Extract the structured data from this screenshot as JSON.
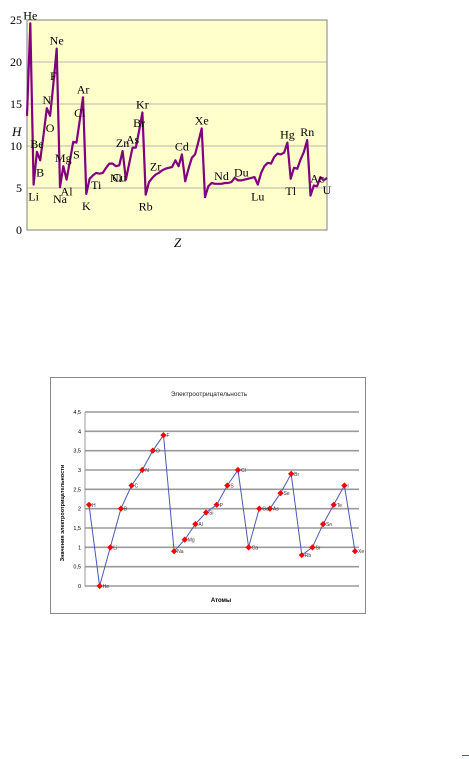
{
  "charts": [
    {
      "type": "line",
      "title": "",
      "xlabel": "Z",
      "ylabel": "H",
      "ylim": [
        0,
        25
      ],
      "yticks": [
        "0",
        "5",
        "10",
        "15",
        "20",
        "25"
      ],
      "grid": true,
      "background": "#ffffcc",
      "line_color": "#800080",
      "series": [
        {
          "x": [
            1,
            2,
            3,
            4,
            5,
            6,
            7,
            8,
            9,
            10,
            11,
            12,
            13,
            14,
            15,
            16,
            17,
            18,
            19,
            20,
            21,
            22,
            23,
            24,
            25,
            26,
            27,
            28,
            29,
            30,
            31,
            32,
            33,
            34,
            35,
            36,
            37,
            38,
            39,
            40,
            41,
            42,
            43,
            44,
            45,
            46,
            47,
            48,
            49,
            50,
            51,
            52,
            53,
            54,
            55,
            56,
            57,
            58,
            59,
            60,
            61,
            62,
            63,
            64,
            65,
            66,
            67,
            68,
            69,
            70,
            71,
            72,
            73,
            74,
            75,
            76,
            77,
            78,
            79,
            80,
            81,
            82,
            83,
            84,
            85,
            86,
            87,
            88,
            89,
            90,
            91,
            92
          ],
          "values": [
            13.6,
            24.6,
            5.4,
            9.3,
            8.3,
            11.3,
            14.5,
            13.6,
            17.4,
            21.6,
            5.1,
            7.6,
            6.0,
            8.2,
            10.5,
            10.4,
            13.0,
            15.8,
            4.3,
            6.1,
            6.5,
            6.8,
            6.7,
            6.8,
            7.4,
            7.9,
            7.9,
            7.6,
            7.7,
            9.4,
            6.0,
            7.9,
            9.8,
            9.8,
            11.8,
            14.0,
            4.2,
            5.7,
            6.2,
            6.6,
            6.8,
            7.1,
            7.3,
            7.4,
            7.5,
            8.3,
            7.6,
            9.0,
            5.8,
            7.3,
            8.6,
            9.0,
            10.5,
            12.1,
            3.9,
            5.2,
            5.6,
            5.5,
            5.5,
            5.5,
            5.6,
            5.6,
            5.7,
            6.2,
            5.9,
            5.9,
            6.0,
            6.1,
            6.2,
            6.3,
            5.4,
            6.8,
            7.6,
            8.0,
            7.9,
            8.7,
            9.1,
            9.0,
            9.2,
            10.4,
            6.1,
            7.4,
            7.3,
            8.4,
            9.3,
            10.7,
            4.1,
            5.3,
            5.2,
            6.3,
            5.9,
            6.2
          ]
        }
      ],
      "labels": [
        {
          "text": "He",
          "x": 2,
          "y": 24.6
        },
        {
          "text": "Ne",
          "x": 10,
          "y": 21.6
        },
        {
          "text": "Ar",
          "x": 18,
          "y": 15.8
        },
        {
          "text": "Kr",
          "x": 36,
          "y": 14.0
        },
        {
          "text": "Xe",
          "x": 54,
          "y": 12.1
        },
        {
          "text": "Hg",
          "x": 80,
          "y": 10.4
        },
        {
          "text": "Rn",
          "x": 86,
          "y": 10.7
        },
        {
          "text": "N",
          "x": 7,
          "y": 14.5
        },
        {
          "text": "Cl",
          "x": 17,
          "y": 13.0
        },
        {
          "text": "F",
          "x": 9,
          "y": 17.4
        },
        {
          "text": "O",
          "x": 8,
          "y": 13.6
        },
        {
          "text": "S",
          "x": 16,
          "y": 10.4
        },
        {
          "text": "Br",
          "x": 35,
          "y": 11.8
        },
        {
          "text": "Cd",
          "x": 48,
          "y": 9.0
        },
        {
          "text": "Nd",
          "x": 60,
          "y": 5.5
        },
        {
          "text": "Du",
          "x": 66,
          "y": 5.9
        },
        {
          "text": "Lu",
          "x": 71,
          "y": 5.4
        },
        {
          "text": "Zn",
          "x": 30,
          "y": 9.4
        },
        {
          "text": "As",
          "x": 33,
          "y": 9.8
        },
        {
          "text": "Zr",
          "x": 40,
          "y": 6.6
        },
        {
          "text": "Ni",
          "x": 28,
          "y": 7.6
        },
        {
          "text": "Ti",
          "x": 22,
          "y": 6.8
        },
        {
          "text": "Be",
          "x": 4,
          "y": 9.3
        },
        {
          "text": "B",
          "x": 5,
          "y": 8.3
        },
        {
          "text": "Mg",
          "x": 12,
          "y": 7.6
        },
        {
          "text": "Al",
          "x": 13,
          "y": 6.0
        },
        {
          "text": "Cu",
          "x": 29,
          "y": 7.7
        },
        {
          "text": "Rb",
          "x": 37,
          "y": 4.2
        },
        {
          "text": "Tl",
          "x": 81,
          "y": 6.1
        },
        {
          "text": "Ac",
          "x": 89,
          "y": 5.2
        },
        {
          "text": "U",
          "x": 92,
          "y": 6.2
        },
        {
          "text": "Li",
          "x": 3,
          "y": 5.4
        },
        {
          "text": "Na",
          "x": 11,
          "y": 5.1
        },
        {
          "text": "K",
          "x": 19,
          "y": 4.3
        }
      ]
    },
    {
      "type": "line",
      "title": "Электроотрицательность",
      "xlabel": "Атомы",
      "ylabel": "Значения электроотрицательности",
      "ylim": [
        0,
        4.5
      ],
      "yticks": [
        "0",
        "0,5",
        "1",
        "1,5",
        "2",
        "2,5",
        "3",
        "3,5",
        "4",
        "4,5"
      ],
      "grid": true,
      "line_color": "#4a5ab0",
      "marker_color": "#ff0000",
      "categories": [
        "H",
        "He",
        "Li",
        "B",
        "C",
        "N",
        "O",
        "F",
        "Na",
        "Mg",
        "Al",
        "Si",
        "P",
        "S",
        "Cl",
        "Ca",
        "Ga",
        "As",
        "Se",
        "Br",
        "Rb",
        "Sr",
        "Sn",
        "Te",
        "I",
        "Xe"
      ],
      "values": [
        2.1,
        0.0,
        1.0,
        2.0,
        2.6,
        3.0,
        3.5,
        3.9,
        0.9,
        1.2,
        1.6,
        1.9,
        2.1,
        2.6,
        3.0,
        1.0,
        2.0,
        2.0,
        2.4,
        2.9,
        0.8,
        1.0,
        1.6,
        2.1,
        2.6,
        0.9
      ]
    }
  ]
}
